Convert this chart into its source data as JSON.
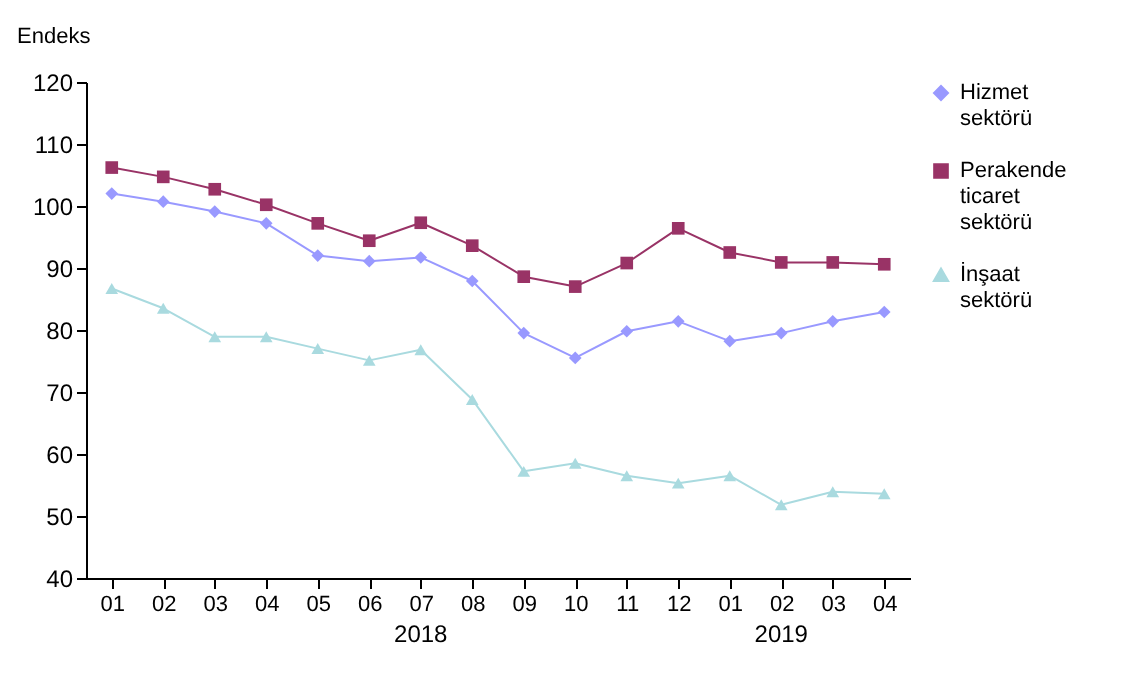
{
  "chart_data": {
    "type": "line",
    "ylabel": "Endeks",
    "categories": [
      "01",
      "02",
      "03",
      "04",
      "05",
      "06",
      "07",
      "08",
      "09",
      "10",
      "11",
      "12",
      "01",
      "02",
      "03",
      "04"
    ],
    "ylim": [
      40,
      120
    ],
    "yticks": [
      40,
      50,
      60,
      70,
      80,
      90,
      100,
      110,
      120
    ],
    "grid": false,
    "legend": "right",
    "annotations": [
      "2018",
      "2019"
    ],
    "series": [
      {
        "name": "Hizmet sektörü",
        "color": "#9999ff",
        "marker": "diamond",
        "values": [
          102.0,
          100.7,
          99.1,
          97.2,
          92.0,
          91.1,
          91.7,
          87.9,
          79.5,
          75.5,
          79.8,
          81.4,
          78.2,
          79.5,
          81.4,
          82.9
        ]
      },
      {
        "name": "Perakende ticaret sektörü",
        "color": "#993366",
        "marker": "square",
        "values": [
          106.2,
          104.7,
          102.7,
          100.2,
          97.2,
          94.4,
          97.3,
          93.6,
          88.6,
          87.0,
          90.8,
          96.4,
          92.5,
          90.9,
          90.9,
          90.6
        ]
      },
      {
        "name": "İnşaat sektörü",
        "color": "#a9dadf",
        "marker": "triangle",
        "values": [
          86.7,
          83.5,
          78.9,
          78.9,
          77.0,
          75.1,
          76.8,
          68.8,
          57.2,
          58.5,
          56.5,
          55.3,
          56.5,
          51.8,
          53.9,
          53.6
        ]
      }
    ]
  }
}
